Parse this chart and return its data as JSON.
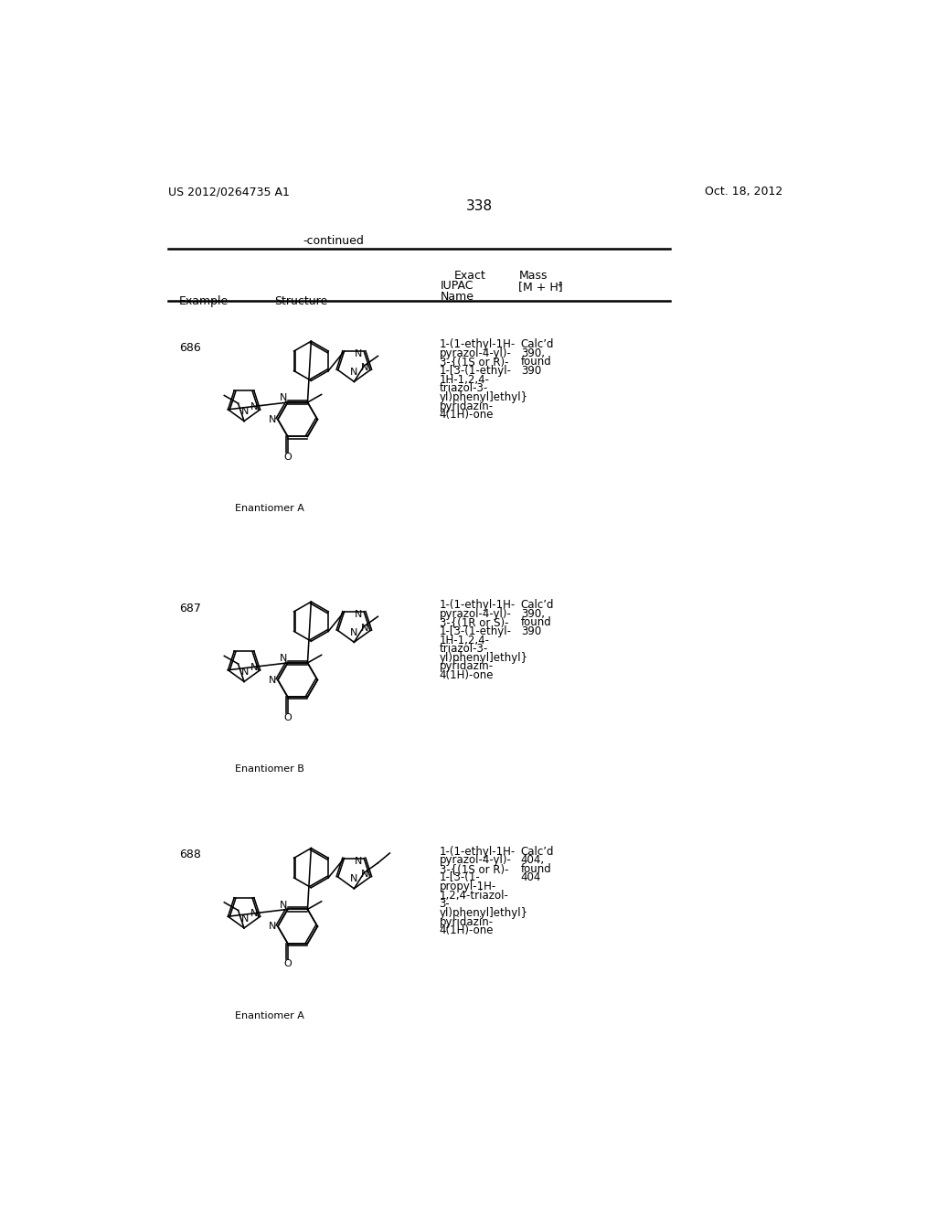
{
  "page_number": "338",
  "patent_number": "US 2012/0264735 A1",
  "patent_date": "Oct. 18, 2012",
  "continued_label": "-continued",
  "bg_color": "#ffffff",
  "examples": [
    {
      "number": "686",
      "enantiomer": "Enantiomer A",
      "iupac_lines": [
        "1-(1-ethyl-1H-",
        "pyrazol-4-yl)-",
        "3-{(1S or R)-",
        "1-[3-(1-ethyl-",
        "1H-1,2,4-",
        "triazol-3-",
        "yl)phenyl]ethyl}",
        "pyridazin-",
        "4(1H)-one"
      ],
      "mass_lines": [
        "Calc’d",
        "390,",
        "found",
        "390",
        "",
        "",
        "",
        "",
        ""
      ],
      "propyl": false
    },
    {
      "number": "687",
      "enantiomer": "Enantiomer B",
      "iupac_lines": [
        "1-(1-ethyl-1H-",
        "pyrazol-4-yl)-",
        "3-{(1R or S)-",
        "1-[3-(1-ethyl-",
        "1H-1,2,4-",
        "triazol-3-",
        "yl)phenyl]ethyl}",
        "pyridazin-",
        "4(1H)-one"
      ],
      "mass_lines": [
        "Calc’d",
        "390,",
        "found",
        "390",
        "",
        "",
        "",
        "",
        ""
      ],
      "propyl": false
    },
    {
      "number": "688",
      "enantiomer": "Enantiomer A",
      "iupac_lines": [
        "1-(1-ethyl-1H-",
        "pyrazol-4-yl)-",
        "3-{(1S or R)-",
        "1-[3-(1-",
        "propyl-1H-",
        "1,2,4-triazol-",
        "3-",
        "yl)phenyl]ethyl}",
        "pyridazin-",
        "4(1H)-one"
      ],
      "mass_lines": [
        "Calc’d",
        "404,",
        "found",
        "404",
        "",
        "",
        "",
        "",
        "",
        ""
      ],
      "propyl": true
    }
  ]
}
